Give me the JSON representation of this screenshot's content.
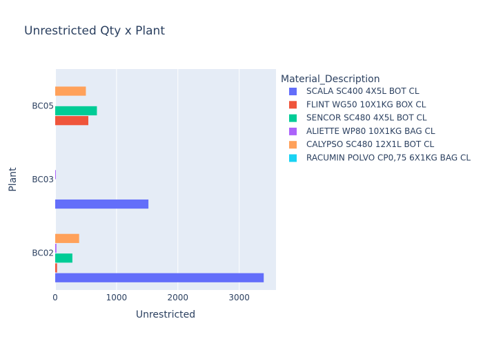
{
  "chart_data": {
    "type": "bar",
    "orientation": "horizontal",
    "barmode": "group",
    "title": "Unrestricted Qty x Plant",
    "xlabel": "Unrestricted",
    "ylabel": "Plant",
    "categories": [
      "BC02",
      "BC03",
      "BC05"
    ],
    "xlim": [
      0,
      3600
    ],
    "xticks": [
      0,
      1000,
      2000,
      3000
    ],
    "xtick_labels": [
      "0",
      "1000",
      "2000",
      "3000"
    ],
    "grid": true,
    "legend_position": "right",
    "legend_title": "Material_Description",
    "series": [
      {
        "name": "SCALA SC400 4X5L BOT CL",
        "color": "#636efa",
        "values": [
          3400,
          1520,
          null
        ]
      },
      {
        "name": "FLINT WG50 10X1KG BOX CL",
        "color": "#EF553B",
        "values": [
          30,
          null,
          540
        ]
      },
      {
        "name": "SENCOR SC480 4X5L BOT CL",
        "color": "#00cc96",
        "values": [
          280,
          null,
          680
        ]
      },
      {
        "name": "ALIETTE WP80 10X1KG BAG CL",
        "color": "#ab63fa",
        "values": [
          20,
          5,
          null
        ]
      },
      {
        "name": "CALYPSO SC480 12X1L BOT CL",
        "color": "#FFA15A",
        "values": [
          390,
          null,
          500
        ]
      },
      {
        "name": "RACUMIN POLVO CP0,75 6X1KG BAG CL",
        "color": "#19d3f3",
        "values": [
          null,
          null,
          null
        ]
      }
    ]
  }
}
